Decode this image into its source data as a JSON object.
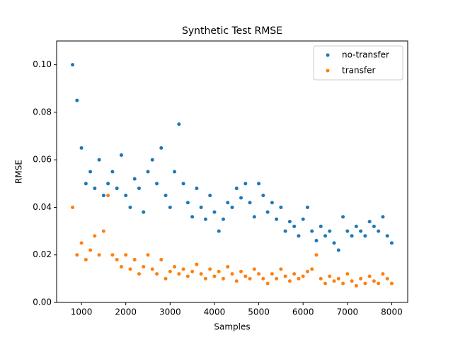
{
  "chart_data": {
    "type": "scatter",
    "title": "Synthetic Test RMSE",
    "x_label": "Samples",
    "y_label": "RMSE",
    "x": [
      800,
      900,
      1000,
      1100,
      1200,
      1300,
      1400,
      1500,
      1600,
      1700,
      1800,
      1900,
      2000,
      2100,
      2200,
      2300,
      2400,
      2500,
      2600,
      2700,
      2800,
      2900,
      3000,
      3100,
      3200,
      3300,
      3400,
      3500,
      3600,
      3700,
      3800,
      3900,
      4000,
      4100,
      4200,
      4300,
      4400,
      4500,
      4600,
      4700,
      4800,
      4900,
      5000,
      5100,
      5200,
      5300,
      5400,
      5500,
      5600,
      5700,
      5800,
      5900,
      6000,
      6100,
      6200,
      6300,
      6400,
      6500,
      6600,
      6700,
      6800,
      6900,
      7000,
      7100,
      7200,
      7300,
      7400,
      7500,
      7600,
      7700,
      7800,
      7900,
      8000
    ],
    "series": [
      {
        "name": "no-transfer",
        "color": "#1f77b4",
        "values": [
          0.1,
          0.085,
          0.065,
          0.05,
          0.055,
          0.048,
          0.06,
          0.045,
          0.05,
          0.055,
          0.048,
          0.062,
          0.045,
          0.04,
          0.052,
          0.048,
          0.038,
          0.055,
          0.06,
          0.05,
          0.065,
          0.045,
          0.04,
          0.055,
          0.075,
          0.05,
          0.042,
          0.036,
          0.048,
          0.04,
          0.035,
          0.045,
          0.038,
          0.03,
          0.035,
          0.042,
          0.04,
          0.048,
          0.044,
          0.05,
          0.042,
          0.036,
          0.05,
          0.045,
          0.038,
          0.042,
          0.035,
          0.04,
          0.03,
          0.034,
          0.032,
          0.028,
          0.035,
          0.04,
          0.03,
          0.026,
          0.032,
          0.028,
          0.03,
          0.025,
          0.022,
          0.036,
          0.03,
          0.028,
          0.032,
          0.03,
          0.028,
          0.034,
          0.032,
          0.03,
          0.036,
          0.028,
          0.025
        ]
      },
      {
        "name": "transfer",
        "color": "#ff7f0e",
        "values": [
          0.04,
          0.02,
          0.025,
          0.018,
          0.022,
          0.028,
          0.02,
          0.03,
          0.045,
          0.02,
          0.018,
          0.015,
          0.02,
          0.014,
          0.018,
          0.012,
          0.015,
          0.02,
          0.014,
          0.012,
          0.018,
          0.01,
          0.013,
          0.015,
          0.012,
          0.014,
          0.011,
          0.013,
          0.016,
          0.012,
          0.01,
          0.014,
          0.011,
          0.013,
          0.01,
          0.015,
          0.012,
          0.009,
          0.013,
          0.011,
          0.01,
          0.014,
          0.012,
          0.01,
          0.008,
          0.012,
          0.01,
          0.014,
          0.011,
          0.009,
          0.012,
          0.01,
          0.011,
          0.013,
          0.014,
          0.02,
          0.01,
          0.008,
          0.011,
          0.009,
          0.01,
          0.008,
          0.012,
          0.009,
          0.007,
          0.01,
          0.008,
          0.011,
          0.009,
          0.008,
          0.012,
          0.01,
          0.008
        ]
      }
    ],
    "xlim": [
      440,
      8360
    ],
    "xticks": [
      1000,
      2000,
      3000,
      4000,
      5000,
      6000,
      7000,
      8000
    ],
    "ylim": [
      0,
      0.11
    ],
    "yticks": [
      {
        "value": 0,
        "label": "0.00"
      },
      {
        "value": 0.02,
        "label": "0.02"
      },
      {
        "value": 0.04,
        "label": "0.04"
      },
      {
        "value": 0.06,
        "label": "0.06"
      },
      {
        "value": 0.08,
        "label": "0.08"
      },
      {
        "value": 0.1,
        "label": "0.10"
      }
    ],
    "legend": "upper right"
  }
}
